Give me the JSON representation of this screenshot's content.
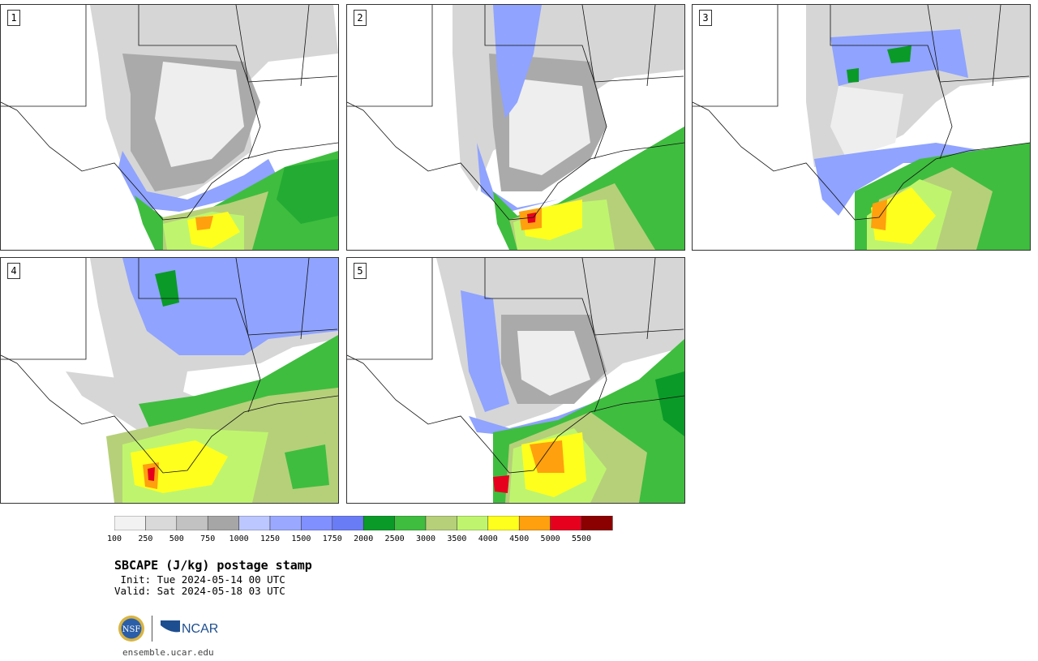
{
  "title": "SBCAPE (J/kg) postage stamp",
  "init": " Init: Tue 2024-05-14 00 UTC",
  "valid": "Valid: Sat 2024-05-18 03 UTC",
  "url": "ensemble.ucar.edu",
  "logos": {
    "nsf": "NSF",
    "ncar": "NCAR"
  },
  "panels": [
    {
      "label": "1"
    },
    {
      "label": "2"
    },
    {
      "label": "3"
    },
    {
      "label": "4"
    },
    {
      "label": "5"
    }
  ],
  "colorbar": {
    "ticks": [
      "100",
      "250",
      "500",
      "750",
      "1000",
      "1250",
      "1500",
      "1750",
      "2000",
      "2500",
      "3000",
      "3500",
      "4000",
      "4500",
      "5000",
      "5500"
    ],
    "colors": [
      "#f2f2f2",
      "#d9d9d9",
      "#c2c2c2",
      "#a6a6a6",
      "#bcc7ff",
      "#9aa9ff",
      "#8090ff",
      "#6a7cf5",
      "#0a9a28",
      "#3fbd3f",
      "#b6d07a",
      "#bff56e",
      "#ffff1e",
      "#ffa00f",
      "#e6001e",
      "#8b0000"
    ]
  },
  "colors": {
    "land": "#ffffff",
    "gulf_shelf": "#3fbd3f",
    "border": "#111111"
  }
}
